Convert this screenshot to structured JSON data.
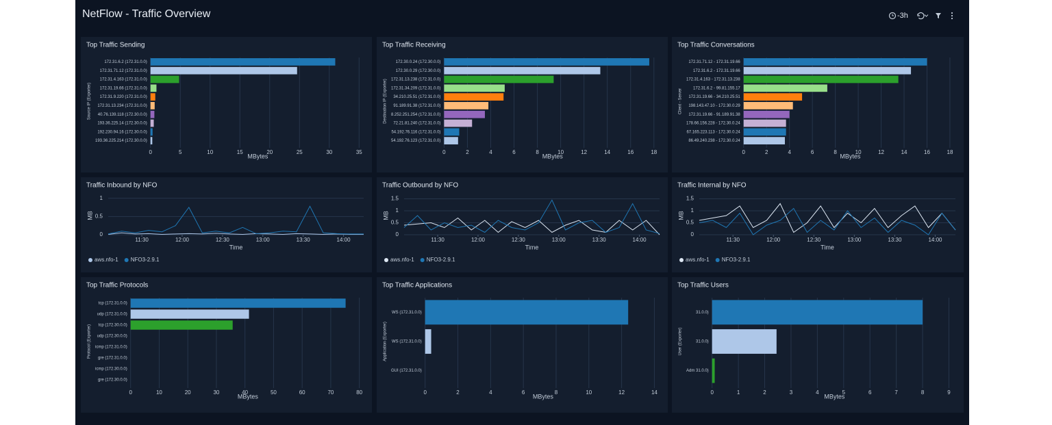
{
  "header": {
    "title": "NetFlow - Traffic Overview",
    "time_range": "-3h"
  },
  "chart_data": [
    {
      "type": "bar",
      "orientation": "horizontal",
      "title": "Top Traffic Sending",
      "ylabel": "Source IP (Exporter)",
      "xlabel": "MBytes",
      "categories": [
        "172.31.6.2 (172.31.0.0)",
        "172.31.71.12 (172.31.0.0)",
        "172.31.4.163 (172.31.0.0)",
        "172.31.19.66 (172.31.0.0)",
        "172.31.9.220 (172.31.0.0)",
        "172.31.13.234 (172.31.0.0)",
        "40.76.139.118 (172.30.0.0)",
        "193.36.225.14 (172.30.0.0)",
        "192.230.94.16 (172.30.0.0)",
        "193.36.225.214 (172.30.0.0)"
      ],
      "values": [
        31,
        24.6,
        4.8,
        1.0,
        0.8,
        0.7,
        0.65,
        0.55,
        0.35,
        0.3
      ],
      "colors": [
        "#1f77b4",
        "#aec7e8",
        "#2ca02c",
        "#98df8a",
        "#ff7f0e",
        "#ffbb78",
        "#9467bd",
        "#c5b0d5",
        "#1f77b4",
        "#aec7e8"
      ],
      "xlim": [
        0,
        36
      ],
      "xticks": [
        0,
        5,
        10,
        15,
        20,
        25,
        30,
        35
      ],
      "grid": true
    },
    {
      "type": "bar",
      "orientation": "horizontal",
      "title": "Top Traffic Receiving",
      "ylabel": "Destination IP (Exporter)",
      "xlabel": "MBytes",
      "categories": [
        "172.30.0.24 (172.30.0.0)",
        "172.30.0.29 (172.30.0.0)",
        "172.31.13.238 (172.31.0.0)",
        "172.31.34.209 (172.31.0.0)",
        "34.210.25.51 (172.31.0.0)",
        "91.189.91.38 (172.31.0.0)",
        "8.252.251.254 (172.31.0.0)",
        "72.21.81.240 (172.31.0.0)",
        "54.192.76.116 (172.31.0.0)",
        "54.192.76.123 (172.31.0.0)"
      ],
      "values": [
        17.6,
        13.4,
        9.4,
        5.2,
        5.1,
        3.8,
        3.5,
        2.4,
        1.3,
        1.2
      ],
      "colors": [
        "#1f77b4",
        "#aec7e8",
        "#2ca02c",
        "#98df8a",
        "#ff7f0e",
        "#ffbb78",
        "#9467bd",
        "#c5b0d5",
        "#1f77b4",
        "#aec7e8"
      ],
      "xlim": [
        0,
        18.6
      ],
      "xticks": [
        0,
        2,
        4,
        6,
        8,
        10,
        12,
        14,
        16,
        18
      ],
      "grid": true
    },
    {
      "type": "bar",
      "orientation": "horizontal",
      "title": "Top Traffic Conversations",
      "ylabel": "Client - Server",
      "xlabel": "MBytes",
      "categories": [
        "172.31.71.12 - 172.31.19.66",
        "172.31.6.2 - 172.31.19.66",
        "172.31.4.163 - 172.31.13.238",
        "172.31.6.2 - 99.81.155.17",
        "172.31.19.66 - 34.210.25.51",
        "198.143.47.10 - 172.30.0.29",
        "172.31.19.66 - 91.189.91.38",
        "178.66.156.228 - 172.30.0.24",
        "67.165.223.113 - 172.30.0.24",
        "86.49.240.238 - 172.30.0.24"
      ],
      "values": [
        16.0,
        14.6,
        13.5,
        7.3,
        5.1,
        4.3,
        4.0,
        3.7,
        3.7,
        3.6
      ],
      "colors": [
        "#1f77b4",
        "#aec7e8",
        "#2ca02c",
        "#98df8a",
        "#ff7f0e",
        "#ffbb78",
        "#9467bd",
        "#c5b0d5",
        "#1f77b4",
        "#aec7e8"
      ],
      "xlim": [
        0,
        18.6
      ],
      "xticks": [
        0,
        2,
        4,
        6,
        8,
        10,
        12,
        14,
        16,
        18
      ],
      "grid": true
    },
    {
      "type": "line",
      "title": "Traffic Inbound by NFO",
      "xlabel": "Time",
      "ylabel": "MB",
      "x": [
        "11:05",
        "11:15",
        "11:25",
        "11:35",
        "11:45",
        "11:55",
        "12:05",
        "12:15",
        "12:25",
        "12:35",
        "12:45",
        "12:55",
        "13:05",
        "13:15",
        "13:25",
        "13:35",
        "13:45",
        "13:55",
        "14:05",
        "14:15"
      ],
      "series": [
        {
          "name": "aws.nfo-1",
          "color": "#aec7e8",
          "values": [
            0.01,
            0.05,
            0.02,
            0.03,
            0.01,
            0.02,
            0.03,
            0.02,
            0.04,
            0.02,
            0.01,
            0.03,
            0.02,
            0.01,
            0.03,
            0.02,
            0.01,
            0.02,
            0.01,
            0.01
          ]
        },
        {
          "name": "NFO3-2.9.1",
          "color": "#1f77b4",
          "values": [
            0.02,
            0.1,
            0.05,
            0.12,
            0.08,
            0.25,
            0.75,
            0.05,
            0.1,
            0.05,
            0.2,
            0.03,
            0.05,
            0.1,
            0.08,
            0.78,
            0.05,
            0.03,
            0.02,
            0.02
          ]
        }
      ],
      "xlim": [
        "11:05",
        "14:15"
      ],
      "xticks": [
        "11:30",
        "12:00",
        "12:30",
        "13:00",
        "13:30",
        "14:00"
      ],
      "ylim": [
        0,
        1.05
      ],
      "yticks": [
        0,
        0.5,
        1
      ],
      "grid": true,
      "legend": "bottom-left"
    },
    {
      "type": "line",
      "title": "Traffic Outbound by NFO",
      "xlabel": "Time",
      "ylabel": "MB",
      "x": [
        "11:05",
        "11:15",
        "11:25",
        "11:35",
        "11:45",
        "11:55",
        "12:05",
        "12:15",
        "12:25",
        "12:35",
        "12:45",
        "12:55",
        "13:05",
        "13:15",
        "13:25",
        "13:35",
        "13:45",
        "13:55",
        "14:05",
        "14:15"
      ],
      "series": [
        {
          "name": "aws.nfo-1",
          "color": "#dde7f3",
          "values": [
            0.4,
            0.45,
            0.5,
            0.3,
            0.7,
            0.2,
            0.6,
            0.1,
            0.55,
            0.3,
            0.6,
            0.1,
            0.4,
            0.6,
            0.2,
            0.1,
            0.6,
            0.2,
            0.6,
            0.0
          ]
        },
        {
          "name": "NFO3-2.9.1",
          "color": "#1f77b4",
          "values": [
            0.3,
            0.8,
            0.2,
            0.5,
            0.3,
            0.4,
            0.1,
            0.6,
            0.3,
            0.2,
            0.5,
            1.45,
            0.2,
            0.5,
            0.6,
            0.1,
            0.3,
            1.3,
            0.2,
            0.05
          ]
        }
      ],
      "xlim": [
        "11:05",
        "14:15"
      ],
      "xticks": [
        "11:30",
        "12:00",
        "12:30",
        "13:00",
        "13:30",
        "14:00"
      ],
      "ylim": [
        0,
        1.6
      ],
      "yticks": [
        0,
        0.5,
        1,
        1.5
      ],
      "grid": true,
      "legend": "bottom-left"
    },
    {
      "type": "line",
      "title": "Traffic Internal by NFO",
      "xlabel": "Time",
      "ylabel": "MB",
      "x": [
        "11:05",
        "11:15",
        "11:25",
        "11:35",
        "11:45",
        "11:55",
        "12:05",
        "12:15",
        "12:25",
        "12:35",
        "12:45",
        "12:55",
        "13:05",
        "13:15",
        "13:25",
        "13:35",
        "13:45",
        "13:55",
        "14:05",
        "14:15"
      ],
      "series": [
        {
          "name": "aws.nfo-1",
          "color": "#dde7f3",
          "values": [
            0.6,
            0.7,
            0.8,
            1.2,
            0.3,
            0.6,
            1.3,
            0.1,
            0.5,
            1.2,
            0.3,
            0.9,
            0.5,
            1.1,
            0.3,
            0.8,
            1.2,
            0.3,
            0.9,
            0.2
          ]
        },
        {
          "name": "NFO3-2.9.1",
          "color": "#1f77b4",
          "values": [
            0.5,
            0.6,
            0.3,
            0.9,
            0.0,
            0.4,
            0.6,
            1.1,
            0.1,
            0.6,
            0.2,
            1.0,
            0.3,
            0.7,
            0.1,
            0.6,
            0.4,
            0.0,
            0.9,
            0.2
          ]
        }
      ],
      "xlim": [
        "11:05",
        "14:15"
      ],
      "xticks": [
        "11:30",
        "12:00",
        "12:30",
        "13:00",
        "13:30",
        "14:00"
      ],
      "ylim": [
        0,
        1.6
      ],
      "yticks": [
        0,
        0.5,
        1,
        1.5
      ],
      "grid": true,
      "legend": "bottom-left"
    },
    {
      "type": "bar",
      "orientation": "horizontal",
      "title": "Top Traffic Protocols",
      "ylabel": "Protocol (Exporter)",
      "xlabel": "MBytes",
      "categories": [
        "tcp (172.31.0.0)",
        "udp (172.31.0.0)",
        "tcp (172.30.0.0)",
        "udp (172.30.0.0)",
        "icmp (172.31.0.0)",
        "gre (172.31.0.0)",
        "icmp (172.30.0.0)",
        "gre (172.30.0.0)"
      ],
      "values": [
        75.2,
        41.4,
        35.7,
        0,
        0,
        0,
        0,
        0
      ],
      "colors": [
        "#1f77b4",
        "#aec7e8",
        "#2ca02c",
        "#98df8a",
        "#ff7f0e",
        "#ffbb78",
        "#9467bd",
        "#c5b0d5"
      ],
      "xlim": [
        0,
        82
      ],
      "xticks": [
        0,
        10,
        20,
        30,
        40,
        50,
        60,
        70,
        80
      ],
      "grid": true
    },
    {
      "type": "bar",
      "orientation": "horizontal",
      "title": "Top Traffic Applications",
      "ylabel": "Application (Exporter)",
      "xlabel": "MBytes",
      "categories": [
        "WS (172.31.0.0)",
        "WS (172.31.0.0)",
        "GUI (172.31.0.0)"
      ],
      "values": [
        12.4,
        0.37,
        0
      ],
      "colors": [
        "#1f77b4",
        "#aec7e8",
        "#2ca02c"
      ],
      "xlim": [
        0,
        14.4
      ],
      "xticks": [
        0,
        2,
        4,
        6,
        8,
        10,
        12,
        14
      ],
      "grid": true
    },
    {
      "type": "bar",
      "orientation": "horizontal",
      "title": "Top Traffic Users",
      "ylabel": "User (Exporter)",
      "xlabel": "MBytes",
      "categories": [
        "31.0.0)",
        "31.0.0)",
        "Adm 31.0.0)"
      ],
      "values": [
        8.0,
        2.45,
        0.1
      ],
      "colors": [
        "#1f77b4",
        "#aec7e8",
        "#2ca02c"
      ],
      "xlim": [
        0,
        9.3
      ],
      "xticks": [
        0,
        1,
        2,
        3,
        4,
        5,
        6,
        7,
        8,
        9
      ],
      "grid": true
    }
  ]
}
